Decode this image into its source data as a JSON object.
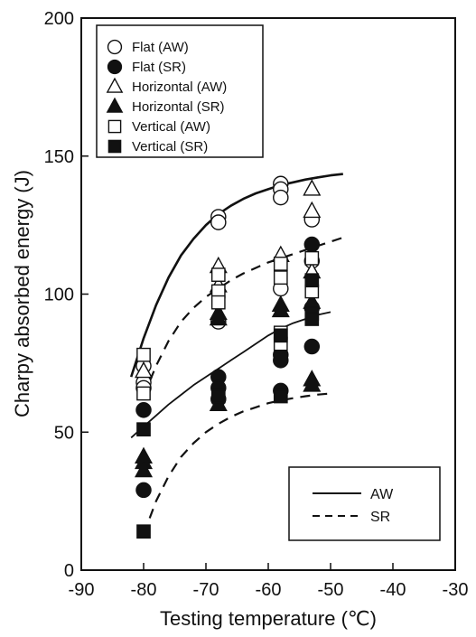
{
  "chart_data": {
    "type": "scatter",
    "title": "",
    "xlabel": "Testing temperature (℃)",
    "ylabel": "Charpy absorbed energy (J)",
    "xlim": [
      -90,
      -30
    ],
    "ylim": [
      0,
      200
    ],
    "xticks": [
      -90,
      -80,
      -70,
      -60,
      -50,
      -40,
      -30
    ],
    "yticks": [
      0,
      50,
      100,
      150,
      200
    ],
    "xtick_labels": [
      "-90",
      "-80",
      "-70",
      "-60",
      "-50",
      "-40",
      "-30"
    ],
    "ytick_labels": [
      "0",
      "50",
      "100",
      "150",
      "200"
    ],
    "grid": false,
    "legend_position": "top-left",
    "series": [
      {
        "name": "Flat (AW)",
        "marker": "circle",
        "filled": false,
        "points": [
          [
            -80,
            74
          ],
          [
            -80,
            68
          ],
          [
            -80,
            66
          ],
          [
            -68,
            128
          ],
          [
            -68,
            126
          ],
          [
            -68,
            90
          ],
          [
            -58,
            140
          ],
          [
            -58,
            138
          ],
          [
            -58,
            135
          ],
          [
            -58,
            102
          ],
          [
            -53,
            127
          ],
          [
            -53,
            112
          ]
        ]
      },
      {
        "name": "Flat (SR)",
        "marker": "circle",
        "filled": true,
        "points": [
          [
            -80,
            58
          ],
          [
            -80,
            29
          ],
          [
            -68,
            70
          ],
          [
            -68,
            66
          ],
          [
            -68,
            62
          ],
          [
            -58,
            78
          ],
          [
            -58,
            76
          ],
          [
            -58,
            65
          ],
          [
            -53,
            118
          ],
          [
            -53,
            95
          ],
          [
            -53,
            81
          ]
        ]
      },
      {
        "name": "Horizontal (AW)",
        "marker": "triangle",
        "filled": false,
        "points": [
          [
            -80,
            72
          ],
          [
            -68,
            110
          ],
          [
            -68,
            103
          ],
          [
            -58,
            114
          ],
          [
            -53,
            138
          ],
          [
            -53,
            130
          ],
          [
            -53,
            108
          ]
        ]
      },
      {
        "name": "Horizontal (SR)",
        "marker": "triangle",
        "filled": true,
        "points": [
          [
            -80,
            41
          ],
          [
            -80,
            39
          ],
          [
            -80,
            36
          ],
          [
            -68,
            93
          ],
          [
            -68,
            91
          ],
          [
            -68,
            60
          ],
          [
            -58,
            96
          ],
          [
            -58,
            94
          ],
          [
            -53,
            97
          ],
          [
            -53,
            69
          ],
          [
            -53,
            67
          ]
        ]
      },
      {
        "name": "Vertical (AW)",
        "marker": "square",
        "filled": false,
        "points": [
          [
            -80,
            78
          ],
          [
            -80,
            64
          ],
          [
            -68,
            107
          ],
          [
            -68,
            101
          ],
          [
            -68,
            97
          ],
          [
            -58,
            111
          ],
          [
            -58,
            106
          ],
          [
            -58,
            86
          ],
          [
            -58,
            82
          ],
          [
            -53,
            113
          ],
          [
            -53,
            101
          ]
        ]
      },
      {
        "name": "Vertical (SR)",
        "marker": "square",
        "filled": true,
        "points": [
          [
            -80,
            51
          ],
          [
            -80,
            14
          ],
          [
            -68,
            63
          ],
          [
            -58,
            85
          ],
          [
            -58,
            63
          ],
          [
            -53,
            105
          ],
          [
            -53,
            93
          ],
          [
            -53,
            91
          ]
        ]
      }
    ],
    "curves": [
      {
        "name": "AW (Flat)",
        "style": "solid",
        "width": 2.6,
        "points": [
          [
            -82,
            70
          ],
          [
            -80,
            84
          ],
          [
            -78,
            96
          ],
          [
            -76,
            106
          ],
          [
            -74,
            114
          ],
          [
            -72,
            120
          ],
          [
            -70,
            125
          ],
          [
            -68,
            129
          ],
          [
            -66,
            132
          ],
          [
            -64,
            134.5
          ],
          [
            -62,
            136.5
          ],
          [
            -60,
            138
          ],
          [
            -58,
            139.5
          ],
          [
            -56,
            140.5
          ],
          [
            -54,
            141.5
          ],
          [
            -52,
            142.3
          ],
          [
            -50,
            143
          ],
          [
            -48,
            143.5
          ]
        ]
      },
      {
        "name": "SR (Flat)",
        "style": "dashed",
        "width": 2.2,
        "points": [
          [
            -80,
            63
          ],
          [
            -78,
            74
          ],
          [
            -76,
            83
          ],
          [
            -74,
            90
          ],
          [
            -72,
            95
          ],
          [
            -70,
            99
          ],
          [
            -68,
            102
          ],
          [
            -66,
            105
          ],
          [
            -64,
            107.5
          ],
          [
            -62,
            109.5
          ],
          [
            -60,
            111.5
          ],
          [
            -58,
            113
          ],
          [
            -56,
            114.5
          ],
          [
            -54,
            116
          ],
          [
            -52,
            117.5
          ],
          [
            -50,
            119
          ],
          [
            -48,
            120.5
          ]
        ]
      },
      {
        "name": "AW (Vertical)",
        "style": "solid",
        "width": 1.8,
        "points": [
          [
            -82,
            48
          ],
          [
            -80,
            52
          ],
          [
            -78,
            56
          ],
          [
            -76,
            60
          ],
          [
            -74,
            63.5
          ],
          [
            -72,
            67
          ],
          [
            -70,
            70
          ],
          [
            -68,
            73
          ],
          [
            -66,
            76
          ],
          [
            -64,
            79
          ],
          [
            -62,
            82
          ],
          [
            -60,
            85
          ],
          [
            -58,
            87.5
          ],
          [
            -56,
            89.5
          ],
          [
            -54,
            91
          ],
          [
            -52,
            92.5
          ],
          [
            -50,
            93.5
          ]
        ]
      },
      {
        "name": "SR (Vertical)",
        "style": "dashed",
        "width": 2.2,
        "points": [
          [
            -80,
            13
          ],
          [
            -78,
            25
          ],
          [
            -76,
            34
          ],
          [
            -74,
            41
          ],
          [
            -72,
            46
          ],
          [
            -70,
            50
          ],
          [
            -68,
            53
          ],
          [
            -66,
            55.5
          ],
          [
            -64,
            57.5
          ],
          [
            -62,
            59
          ],
          [
            -60,
            60.5
          ],
          [
            -58,
            61.5
          ],
          [
            -56,
            62.3
          ],
          [
            -54,
            63
          ],
          [
            -52,
            63.6
          ],
          [
            -50,
            64
          ]
        ]
      }
    ],
    "line_legend": [
      {
        "label": "AW",
        "style": "solid"
      },
      {
        "label": "SR",
        "style": "dashed"
      }
    ]
  }
}
